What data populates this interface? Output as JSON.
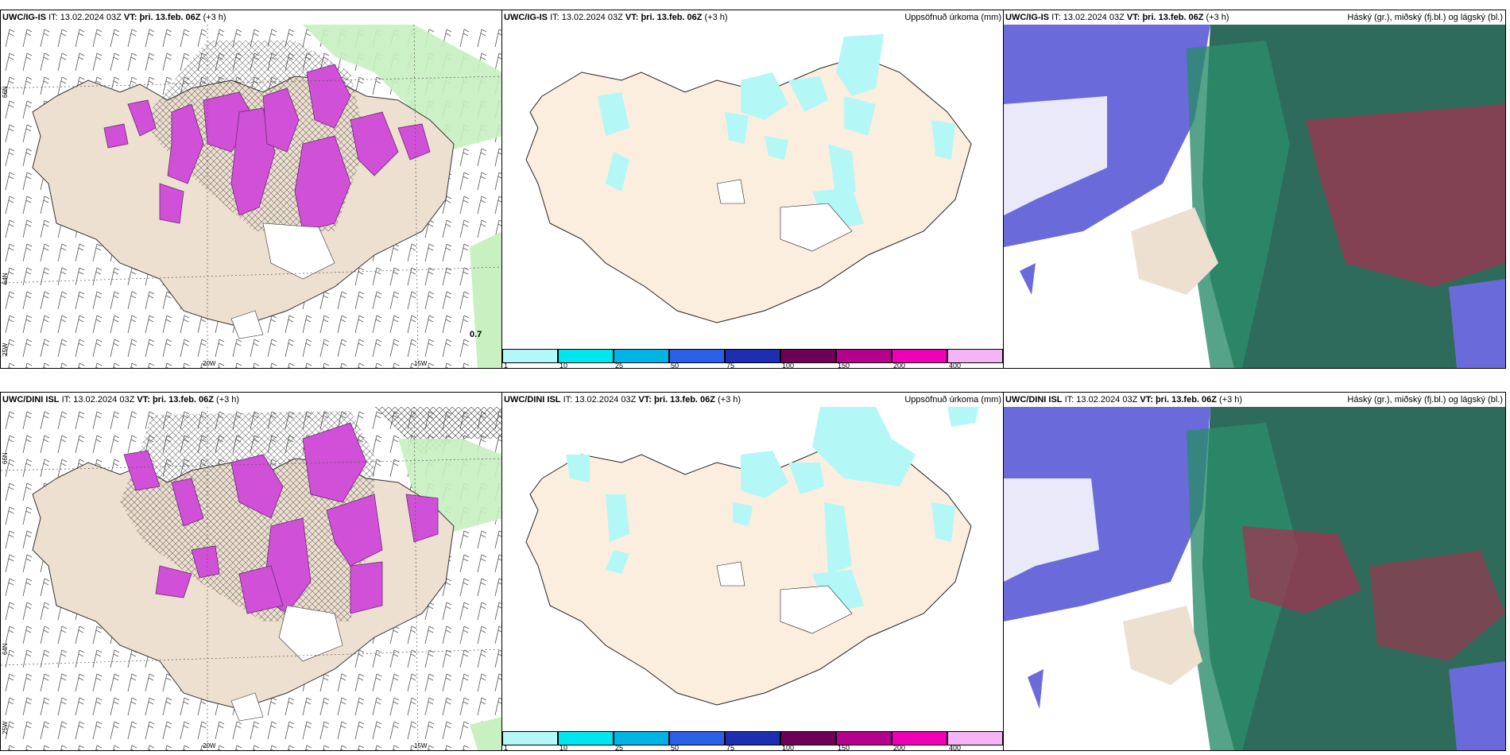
{
  "row1": {
    "left": {
      "model": "UWC/IG-IS",
      "it_label": "IT:",
      "it_value": "13.02.2024 03Z",
      "vt_label": "VT:",
      "vt_value": "þri. 13.feb. 06Z",
      "lead": "(+3 h)",
      "corner_value": "0.7"
    },
    "mid": {
      "model": "UWC/IG-IS",
      "it_label": "IT:",
      "it_value": "13.02.2024 03Z",
      "vt_label": "VT:",
      "vt_value": "þri. 13.feb. 06Z",
      "lead": "(+3 h)",
      "right_title": "Uppsöfnuð úrkoma (mm)"
    },
    "right": {
      "model": "UWC/IG-IS",
      "it_label": "IT:",
      "it_value": "13.02.2024 03Z",
      "vt_label": "VT:",
      "vt_value": "þri. 13.feb. 06Z",
      "lead": "(+3 h)",
      "right_title": "Háský (gr.), miðský (fj.bl.) og lágský (bl.)"
    }
  },
  "row2": {
    "left": {
      "model": "UWC/DINI ISL",
      "it_label": "IT:",
      "it_value": "13.02.2024 03Z",
      "vt_label": "VT:",
      "vt_value": "þri. 13.feb. 06Z",
      "lead": "(+3 h)"
    },
    "mid": {
      "model": "UWC/DINI ISL",
      "it_label": "IT:",
      "it_value": "13.02.2024 03Z",
      "vt_label": "VT:",
      "vt_value": "þri. 13.feb. 06Z",
      "lead": "(+3 h)",
      "right_title": "Uppsöfnuð úrkoma (mm)"
    },
    "right": {
      "model": "UWC/DINI ISL",
      "it_label": "IT:",
      "it_value": "13.02.2024 03Z",
      "vt_label": "VT:",
      "vt_value": "þri. 13.feb. 06Z",
      "lead": "(+3 h)",
      "right_title": "Háský (gr.), miðský (fj.bl.) og lágský (bl.)"
    }
  },
  "axes": {
    "lat_66": "66N",
    "lat_64": "64N",
    "lon_20": "20W",
    "lon_15": "15W",
    "lon_25": "25W"
  },
  "legend": {
    "ticks": [
      "1",
      "10",
      "25",
      "50",
      "75",
      "100",
      "150",
      "200",
      "400"
    ],
    "colors": [
      "#b3f7f7",
      "#00e6ee",
      "#00b4e6",
      "#2a5fe6",
      "#1e2eb0",
      "#6e0058",
      "#b4008c",
      "#f000b4",
      "#f5b4f5"
    ]
  },
  "colors": {
    "land": "#ede0d0",
    "land_light": "#fbeedf",
    "precip_light": "#b3f7f7",
    "snow_magenta": "#d050d8",
    "sea_green": "#c8f0c0",
    "high_cloud": "#2e6b5a",
    "mid_cloud": "#2a8c6a",
    "low_cloud": "#6a6adb",
    "red_cloud": "#a83050"
  }
}
